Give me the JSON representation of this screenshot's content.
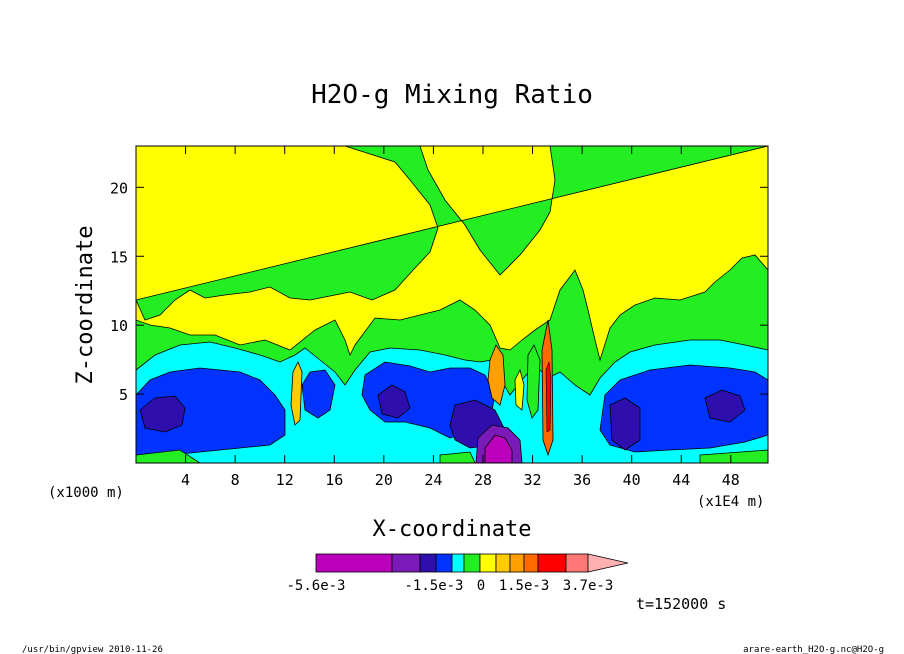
{
  "chart_data": {
    "type": "heatmap",
    "title": "H2O-g Mixing Ratio",
    "xlabel": "X-coordinate",
    "ylabel": "Z-coordinate",
    "x_unit_note": "(x1000 m)",
    "x_unit_note_right": "(x1E4 m)",
    "xlim": [
      0,
      51
    ],
    "ylim": [
      0,
      23
    ],
    "x_ticks": [
      "4",
      "8",
      "12",
      "16",
      "20",
      "24",
      "28",
      "32",
      "36",
      "40",
      "44",
      "48"
    ],
    "x_tick_values": [
      4,
      8,
      12,
      16,
      20,
      24,
      28,
      32,
      36,
      40,
      44,
      48
    ],
    "y_ticks": [
      "5",
      "10",
      "15",
      "20"
    ],
    "y_tick_values": [
      5,
      10,
      15,
      20
    ],
    "colorbar": {
      "colors": [
        "#bb00bb",
        "#7a1ab8",
        "#2e0fae",
        "#0033ff",
        "#00ffff",
        "#22ee22",
        "#ffff00",
        "#ffcc00",
        "#ffa000",
        "#ff6a00",
        "#ff0000",
        "#ff7777",
        "#ffb0b0"
      ],
      "labels": [
        "-5.6e-3",
        "-1.5e-3",
        "0",
        "1.5e-3",
        "3.7e-3"
      ]
    },
    "bands": [
      {
        "name": "yellow-band",
        "color": "#ffff00",
        "level": "upper"
      },
      {
        "name": "green-band",
        "color": "#22ee22",
        "level": "mid-upper"
      },
      {
        "name": "cyan-band",
        "color": "#00ffff",
        "level": "mid"
      },
      {
        "name": "blue-band",
        "color": "#0033ff",
        "level": "lower"
      },
      {
        "name": "navy-band",
        "color": "#1a0ea0",
        "level": "core"
      }
    ],
    "time_label": "t=152000 s"
  },
  "footer": {
    "left": "/usr/bin/gpview 2010-11-26",
    "right": "arare-earth_H2O-g.nc@H2O-g"
  }
}
